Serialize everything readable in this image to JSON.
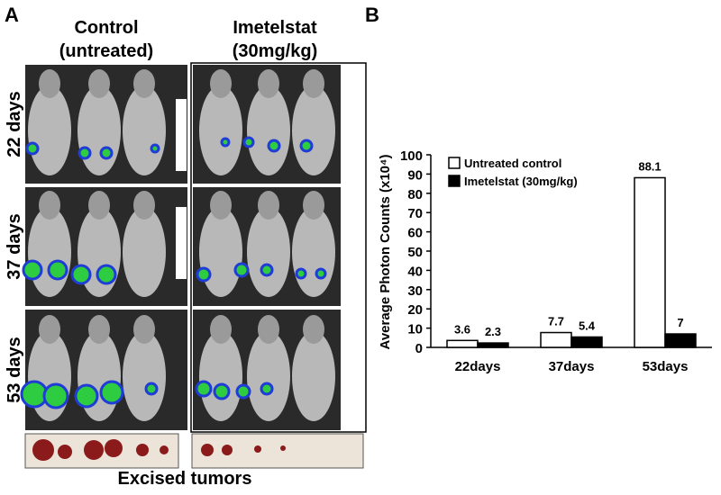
{
  "panel_a": {
    "label": "A",
    "groups": [
      {
        "line1": "Control",
        "line2": "(untreated)"
      },
      {
        "line1": "Imetelstat",
        "line2": "(30mg/kg)"
      }
    ],
    "rows": [
      "22 days",
      "37 days",
      "53 days"
    ],
    "caption": "Excised tumors"
  },
  "chart_data": {
    "type": "bar",
    "panel_label": "B",
    "ylabel": "Average Photon Counts (x10⁴)",
    "categories": [
      "22days",
      "37days",
      "53days"
    ],
    "series": [
      {
        "name": "Untreated control",
        "color": "#ffffff",
        "values": [
          3.6,
          7.7,
          88.1
        ]
      },
      {
        "name": "Imetelstat (30mg/kg)",
        "color": "#000000",
        "values": [
          2.3,
          5.4,
          7
        ]
      }
    ],
    "ylim": [
      0,
      100
    ],
    "yticks": [
      0,
      10,
      20,
      30,
      40,
      50,
      60,
      70,
      80,
      90,
      100
    ],
    "legend": "upper left"
  }
}
